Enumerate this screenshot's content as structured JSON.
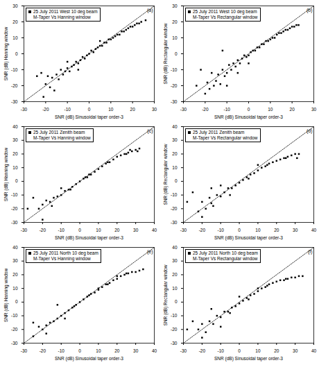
{
  "chart_data": [
    {
      "type": "scatter",
      "title": "(a)",
      "annotation": "M-Taper Vs Hanning window",
      "x_label": "SNR (dB) Sinusoidal taper order-3",
      "y_label": "SNR (dB) Hanning window",
      "xlim": [
        -30,
        30
      ],
      "xticks": [
        -30,
        -20,
        -10,
        0,
        10,
        20,
        30
      ],
      "ylim": [
        -30,
        30
      ],
      "yticks": [
        -30,
        -20,
        -10,
        0,
        10,
        20,
        30
      ],
      "legend": "top-left",
      "series": [
        {
          "name": "25 July 2011 West 10 deg beam",
          "color": "#000000",
          "marker": "square",
          "x": [
            -22,
            -20,
            -19,
            -18,
            -17,
            -15,
            -14,
            -13,
            -12,
            -11,
            -10,
            -9,
            -8,
            -7,
            -6,
            -5,
            -4,
            -3,
            -2,
            -1,
            0,
            1,
            2,
            3,
            4,
            5,
            6,
            7,
            8,
            9,
            10,
            11,
            12,
            13,
            14,
            15,
            16,
            17,
            18,
            19,
            20,
            21,
            22,
            23,
            24,
            26,
            -16,
            -10,
            -5,
            5,
            -24,
            -21
          ],
          "values": [
            -12,
            -19,
            -14,
            -21,
            -15,
            -13,
            -16,
            -10,
            -13,
            -11,
            -9,
            -11,
            -8,
            -7,
            -5,
            -6,
            -4,
            -2,
            -3,
            -1,
            0,
            2,
            1,
            3,
            4,
            5,
            5,
            7,
            7,
            9,
            9,
            10,
            11,
            12,
            12,
            14,
            14,
            15,
            16,
            17,
            17,
            18,
            19,
            19,
            20,
            21,
            -23,
            -5,
            -10,
            8,
            -14,
            -27
          ]
        }
      ]
    },
    {
      "type": "scatter",
      "title": "(b)",
      "annotation": "M-Taper Vs Rectangular window",
      "x_label": "SNR (dB) Sinusoidal taper order-3",
      "y_label": "SNR (dB) Rectangular window",
      "xlim": [
        -30,
        30
      ],
      "xticks": [
        -30,
        -20,
        -10,
        0,
        10,
        20,
        30
      ],
      "ylim": [
        -30,
        30
      ],
      "yticks": [
        -30,
        -20,
        -10,
        0,
        10,
        20,
        30
      ],
      "legend": "top-left",
      "series": [
        {
          "name": "25 July 2011 West 10 deg beam",
          "color": "#000000",
          "marker": "square",
          "x": [
            -22,
            -20,
            -19,
            -18,
            -17,
            -16,
            -15,
            -14,
            -13,
            -12,
            -11,
            -10,
            -9,
            -8,
            -7,
            -6,
            -5,
            -4,
            -3,
            -2,
            -1,
            0,
            1,
            2,
            3,
            4,
            5,
            6,
            7,
            8,
            9,
            10,
            11,
            12,
            13,
            14,
            15,
            16,
            17,
            18,
            19,
            20,
            21,
            22,
            23,
            -24,
            -10,
            -5,
            -12,
            0
          ],
          "values": [
            -10,
            -25,
            -18,
            -22,
            -12,
            -20,
            -17,
            -13,
            -19,
            -10,
            -14,
            -12,
            -7,
            -10,
            -6,
            -8,
            -4,
            -6,
            -3,
            -1,
            -2,
            -1,
            1,
            2,
            2,
            4,
            4,
            6,
            6,
            8,
            8,
            9,
            10,
            10,
            12,
            13,
            13,
            14,
            15,
            15,
            16,
            17,
            17,
            18,
            18,
            -20,
            -20,
            -12,
            2,
            -6
          ]
        }
      ]
    },
    {
      "type": "scatter",
      "title": "(c)",
      "annotation": "M-Taper Vs Hanning window",
      "x_label": "SNR (dB) Sinusoidal taper order-3",
      "y_label": "SNR (dB) Hanning window",
      "xlim": [
        -30,
        40
      ],
      "xticks": [
        -30,
        -20,
        -10,
        0,
        10,
        20,
        30,
        40
      ],
      "ylim": [
        -30,
        40
      ],
      "yticks": [
        -30,
        -20,
        -10,
        0,
        10,
        20,
        30,
        40
      ],
      "legend": "top-left",
      "series": [
        {
          "name": "25 July 2011 Zenith beam",
          "color": "#000000",
          "marker": "square",
          "x": [
            -25,
            -22,
            -20,
            -18,
            -16,
            -15,
            -14,
            -12,
            -10,
            -8,
            -6,
            -4,
            -2,
            0,
            2,
            4,
            6,
            8,
            10,
            12,
            14,
            16,
            18,
            20,
            22,
            24,
            26,
            28,
            30,
            32,
            -20,
            -10,
            5,
            15,
            25,
            -5,
            3,
            -28,
            27,
            31
          ],
          "values": [
            -12,
            -20,
            -17,
            -14,
            -15,
            -18,
            -12,
            -11,
            -10,
            -7,
            -6,
            -4,
            -2,
            0,
            2,
            3,
            5,
            7,
            9,
            11,
            13,
            14,
            16,
            18,
            19,
            20,
            21,
            22,
            23,
            24,
            -28,
            -5,
            5,
            14,
            20,
            -6,
            3,
            -20,
            23,
            22
          ]
        }
      ]
    },
    {
      "type": "scatter",
      "title": "(d)",
      "annotation": "M-Taper Vs Rectangular window",
      "x_label": "SNR (dB) Sinusoidal taper order-3",
      "y_label": "SNR (dB) Rectangular window",
      "xlim": [
        -30,
        40
      ],
      "xticks": [
        -30,
        -20,
        -10,
        0,
        10,
        20,
        30,
        40
      ],
      "ylim": [
        -30,
        40
      ],
      "yticks": [
        -30,
        -20,
        -10,
        0,
        10,
        20,
        30,
        40
      ],
      "legend": "top-left",
      "series": [
        {
          "name": "25 July 2011 Zenith beam",
          "color": "#000000",
          "marker": "square",
          "x": [
            -25,
            -22,
            -20,
            -18,
            -16,
            -15,
            -14,
            -12,
            -10,
            -8,
            -6,
            -4,
            -2,
            0,
            2,
            4,
            6,
            8,
            10,
            12,
            14,
            16,
            18,
            20,
            22,
            24,
            26,
            28,
            30,
            32,
            -20,
            -10,
            -15,
            5,
            15,
            25,
            -5,
            -28,
            10,
            31
          ],
          "values": [
            -8,
            -22,
            -15,
            -20,
            -12,
            -16,
            -18,
            -10,
            -11,
            -8,
            -5,
            -5,
            -3,
            -1,
            1,
            3,
            5,
            6,
            8,
            10,
            11,
            13,
            14,
            15,
            16,
            17,
            18,
            19,
            20,
            20,
            -26,
            -3,
            -5,
            2,
            12,
            17,
            -10,
            -15,
            12,
            17
          ]
        }
      ]
    },
    {
      "type": "scatter",
      "title": "(e)",
      "annotation": "M-Taper Vs Hanning window",
      "x_label": "SNR (dB) Sinusoidal taper order-3",
      "y_label": "SNR (dB) Hanning window",
      "xlim": [
        -30,
        40
      ],
      "xticks": [
        -30,
        -20,
        -10,
        0,
        10,
        20,
        30,
        40
      ],
      "ylim": [
        -30,
        40
      ],
      "yticks": [
        -30,
        -20,
        -10,
        0,
        10,
        20,
        30,
        40
      ],
      "legend": "top-left",
      "series": [
        {
          "name": "25 July 2011 North 10 deg beam",
          "color": "#000000",
          "marker": "square",
          "x": [
            -25,
            -22,
            -20,
            -18,
            -16,
            -14,
            -12,
            -10,
            -8,
            -6,
            -4,
            -2,
            0,
            2,
            4,
            6,
            8,
            10,
            12,
            14,
            16,
            18,
            20,
            22,
            24,
            26,
            28,
            30,
            32,
            34,
            -18,
            -12,
            -8,
            10,
            20,
            -25,
            15,
            25,
            5,
            -3
          ],
          "values": [
            -15,
            -18,
            -20,
            -17,
            -15,
            -14,
            -12,
            -10,
            -8,
            -6,
            -4,
            -2,
            0,
            2,
            4,
            6,
            7,
            9,
            11,
            13,
            14,
            16,
            17,
            19,
            20,
            21,
            22,
            22,
            23,
            24,
            -23,
            -2,
            -12,
            10,
            19,
            -25,
            13,
            21,
            5,
            -3
          ]
        }
      ]
    },
    {
      "type": "scatter",
      "title": "(f)",
      "annotation": "M-Taper Vs Rectangular window",
      "x_label": "SNR (dB) Sinusoidal taper order-3",
      "y_label": "SNR (dB) Rectangular window",
      "xlim": [
        -30,
        40
      ],
      "xticks": [
        -30,
        -20,
        -10,
        0,
        10,
        20,
        30,
        40
      ],
      "ylim": [
        -30,
        40
      ],
      "yticks": [
        -30,
        -20,
        -10,
        0,
        10,
        20,
        30,
        40
      ],
      "legend": "top-left",
      "series": [
        {
          "name": "25 July 2011 North 10 deg beam",
          "color": "#000000",
          "marker": "square",
          "x": [
            -25,
            -22,
            -20,
            -18,
            -16,
            -14,
            -12,
            -10,
            -8,
            -6,
            -4,
            -2,
            0,
            2,
            4,
            6,
            8,
            10,
            12,
            14,
            16,
            18,
            20,
            22,
            24,
            26,
            28,
            30,
            32,
            34,
            -20,
            -15,
            -10,
            5,
            15,
            25,
            -5,
            -28,
            0,
            10
          ],
          "values": [
            -14,
            -20,
            -16,
            -22,
            -14,
            -16,
            -10,
            -11,
            -7,
            -7,
            -4,
            -3,
            -1,
            1,
            3,
            5,
            6,
            8,
            10,
            11,
            13,
            14,
            15,
            16,
            16,
            17,
            18,
            18,
            19,
            19,
            -26,
            -5,
            -18,
            2,
            12,
            17,
            -8,
            -20,
            4,
            10
          ]
        }
      ]
    }
  ]
}
